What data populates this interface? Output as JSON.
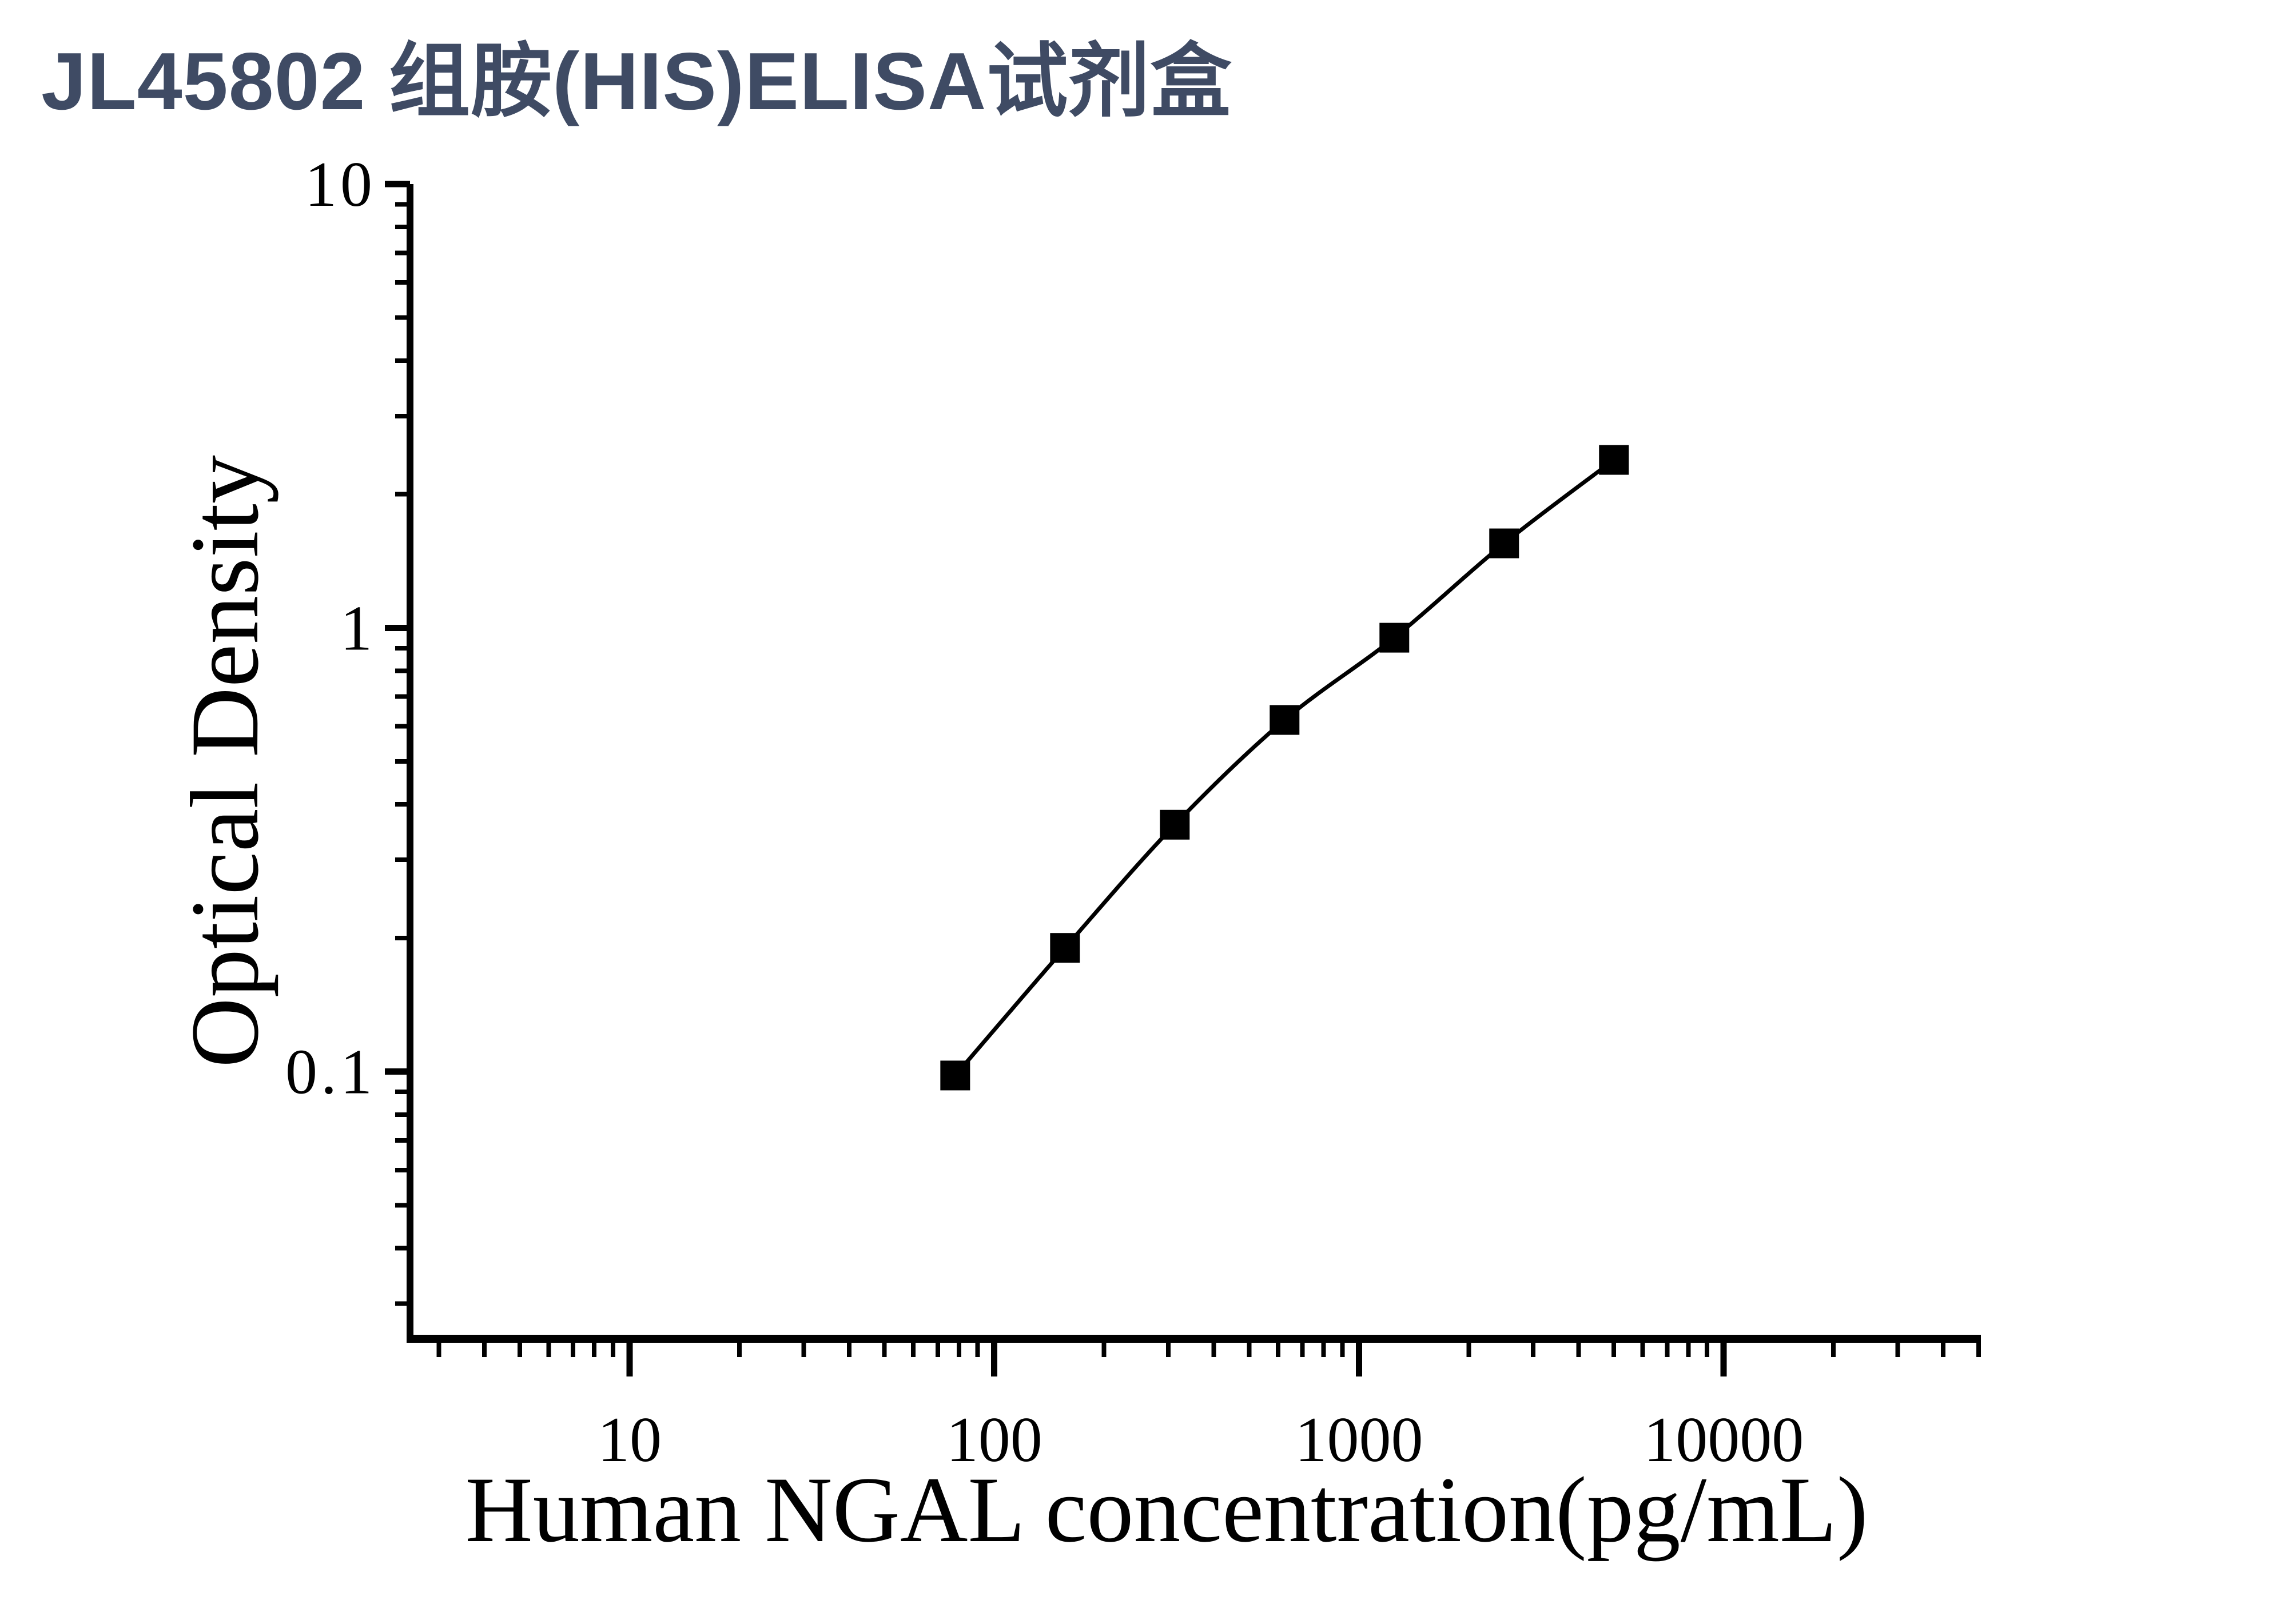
{
  "title": "JL45802 组胺(HIS)ELISA试剂盒",
  "colors": {
    "title": "#3f4b64",
    "axis": "#000000",
    "curve": "#000000",
    "marker": "#000000",
    "background": "#ffffff"
  },
  "chart_data": {
    "type": "line",
    "title": "",
    "xlabel": "Human NGAL concentration(pg/mL)",
    "ylabel": "Optical Density",
    "x_scale": "log",
    "y_scale": "log",
    "xlim": [
      2.5,
      50000
    ],
    "ylim": [
      0.025,
      10
    ],
    "x_major_ticks": [
      10,
      100,
      1000,
      10000
    ],
    "x_major_tick_labels": [
      "10",
      "100",
      "1000",
      "10000"
    ],
    "y_major_ticks": [
      0.1,
      1,
      10
    ],
    "y_major_tick_labels": [
      "0.1",
      "1",
      "10"
    ],
    "grid": false,
    "legend": false,
    "marker": "filled-square",
    "series": [
      {
        "name": "standard-curve",
        "points": [
          {
            "x": 78.125,
            "y": 0.098
          },
          {
            "x": 156.25,
            "y": 0.19
          },
          {
            "x": 312.5,
            "y": 0.36
          },
          {
            "x": 625,
            "y": 0.62
          },
          {
            "x": 1250,
            "y": 0.95
          },
          {
            "x": 2500,
            "y": 1.55
          },
          {
            "x": 5000,
            "y": 2.39
          }
        ]
      }
    ]
  }
}
